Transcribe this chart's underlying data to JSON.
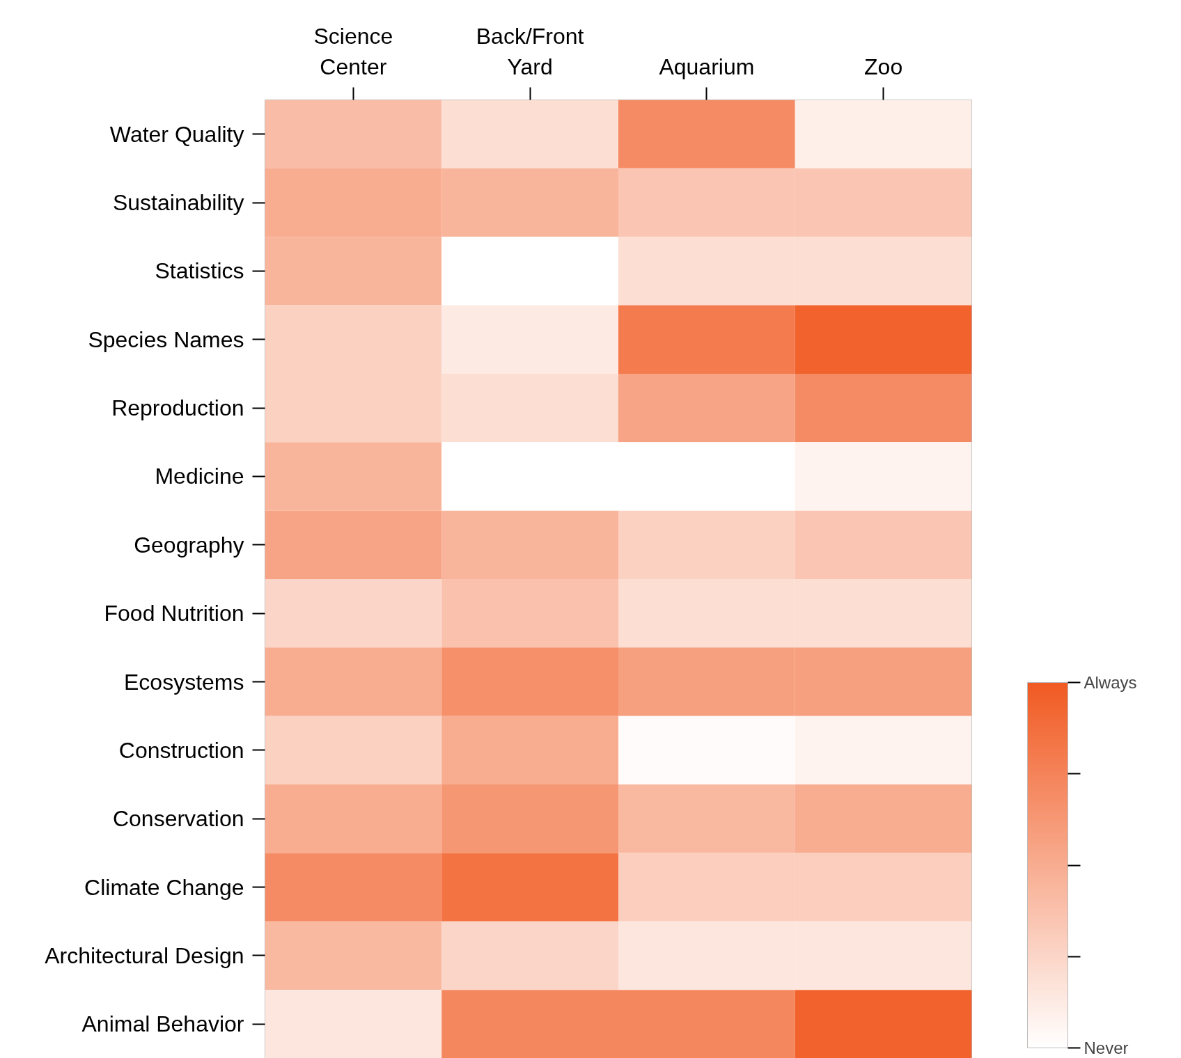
{
  "chart_data": {
    "type": "heatmap",
    "categories": [
      "Science Center",
      "Back/Front Yard",
      "Aquarium",
      "Zoo"
    ],
    "y_categories": [
      "Water Quality",
      "Sustainability",
      "Statistics",
      "Species Names",
      "Reproduction",
      "Medicine",
      "Geography",
      "Food Nutrition",
      "Ecosystems",
      "Construction",
      "Conservation",
      "Climate Change",
      "Architectural Design",
      "Animal Behavior"
    ],
    "cells": [
      [
        1.6,
        0.8,
        2.8,
        0.4
      ],
      [
        2.0,
        1.8,
        1.4,
        1.4
      ],
      [
        1.8,
        0.0,
        0.8,
        0.8
      ],
      [
        1.1,
        0.5,
        3.2,
        3.8
      ],
      [
        1.1,
        0.8,
        2.2,
        2.8
      ],
      [
        1.8,
        0.0,
        0.0,
        0.3
      ],
      [
        2.2,
        1.8,
        1.1,
        1.4
      ],
      [
        1.0,
        1.5,
        0.8,
        0.8
      ],
      [
        2.0,
        2.7,
        2.3,
        2.3
      ],
      [
        1.1,
        2.0,
        0.1,
        0.3
      ],
      [
        2.0,
        2.5,
        1.7,
        2.0
      ],
      [
        2.8,
        3.4,
        1.2,
        1.2
      ],
      [
        1.7,
        1.0,
        0.6,
        0.6
      ],
      [
        0.6,
        2.9,
        2.9,
        3.8
      ]
    ],
    "clim": [
      0,
      4
    ],
    "cticks": [
      {
        "value": 0,
        "label": "Never"
      },
      {
        "value": 1,
        "label": null
      },
      {
        "value": 2,
        "label": null
      },
      {
        "value": 3,
        "label": null
      },
      {
        "value": 4,
        "label": "Always"
      }
    ],
    "color": "#f15a22"
  }
}
